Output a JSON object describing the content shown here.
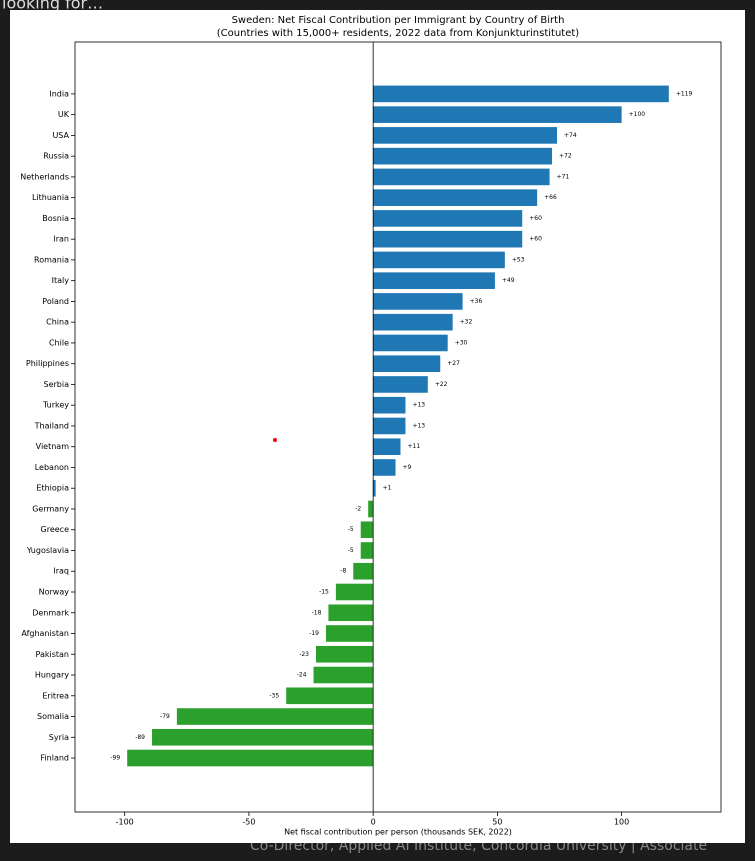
{
  "page": {
    "top_text": "looking for…",
    "bottom_text": "Co-Director, Applied AI Institute, Concordia University | Associate"
  },
  "chart_data": {
    "type": "barh",
    "title": "Sweden: Net Fiscal Contribution per Immigrant by Country of Birth",
    "subtitle": "(Countries with 15,000+ residents, 2022 data from Konjunkturinstitutet)",
    "x_label": "Net fiscal contribution per person (thousands SEK, 2022)",
    "categories": [
      "India",
      "UK",
      "USA",
      "Russia",
      "Netherlands",
      "Lithuania",
      "Bosnia",
      "Iran",
      "Romania",
      "Italy",
      "Poland",
      "China",
      "Chile",
      "Philippines",
      "Serbia",
      "Turkey",
      "Thailand",
      "Vietnam",
      "Lebanon",
      "Ethiopia",
      "Germany",
      "Greece",
      "Yugoslavia",
      "Iraq",
      "Norway",
      "Denmark",
      "Afghanistan",
      "Pakistan",
      "Hungary",
      "Eritrea",
      "Somalia",
      "Syria",
      "Finland"
    ],
    "values": [
      119,
      100,
      74,
      72,
      71,
      66,
      60,
      60,
      53,
      49,
      36,
      32,
      30,
      27,
      22,
      13,
      13,
      11,
      9,
      1,
      -2,
      -5,
      -5,
      -8,
      -15,
      -18,
      -19,
      -23,
      -24,
      -35,
      -79,
      -89,
      -99
    ],
    "value_labels": [
      "+119",
      "+100",
      "+74",
      "+72",
      "+71",
      "+66",
      "+60",
      "+60",
      "+53",
      "+49",
      "+36",
      "+32",
      "+30",
      "+27",
      "+22",
      "+13",
      "+13",
      "+11",
      "+9",
      "+1",
      "-2",
      "-5",
      "-5",
      "-8",
      "-15",
      "-18",
      "-19",
      "-23",
      "-24",
      "-35",
      "-79",
      "-89",
      "-99"
    ],
    "color_positive": "#1f77b4",
    "color_negative": "#2ca02c",
    "xlim": [
      -120,
      140
    ],
    "xticks": [
      -100,
      -50,
      0,
      50,
      100
    ],
    "zero_line": true
  }
}
